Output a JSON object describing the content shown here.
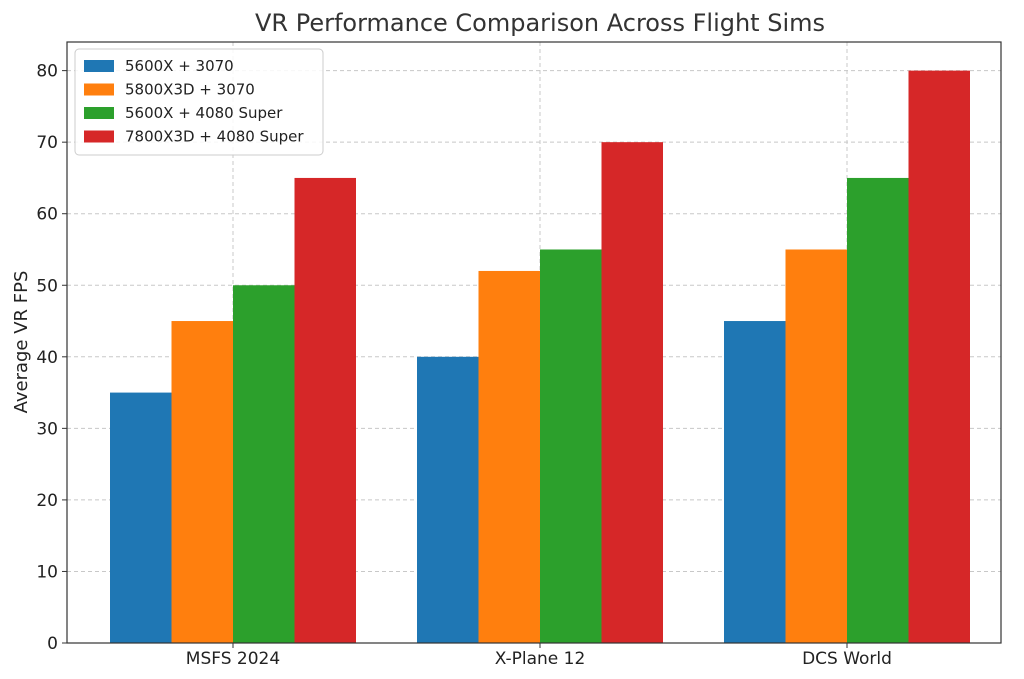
{
  "chart_data": {
    "type": "bar",
    "title": "VR Performance Comparison Across Flight Sims",
    "xlabel": "",
    "ylabel": "Average VR FPS",
    "categories": [
      "MSFS 2024",
      "X-Plane 12",
      "DCS World"
    ],
    "series": [
      {
        "name": "5600X + 3070",
        "color": "#1f77b4",
        "values": [
          35,
          40,
          45
        ]
      },
      {
        "name": "5800X3D + 3070",
        "color": "#ff7f0e",
        "values": [
          45,
          52,
          55
        ]
      },
      {
        "name": "5600X + 4080 Super",
        "color": "#2ca02c",
        "values": [
          50,
          55,
          65
        ]
      },
      {
        "name": "7800X3D + 4080 Super",
        "color": "#d62728",
        "values": [
          65,
          70,
          80
        ]
      }
    ],
    "ylim": [
      0,
      84
    ],
    "yticks": [
      0,
      10,
      20,
      30,
      40,
      50,
      60,
      70,
      80
    ],
    "grid": true,
    "legend": "top-left"
  }
}
